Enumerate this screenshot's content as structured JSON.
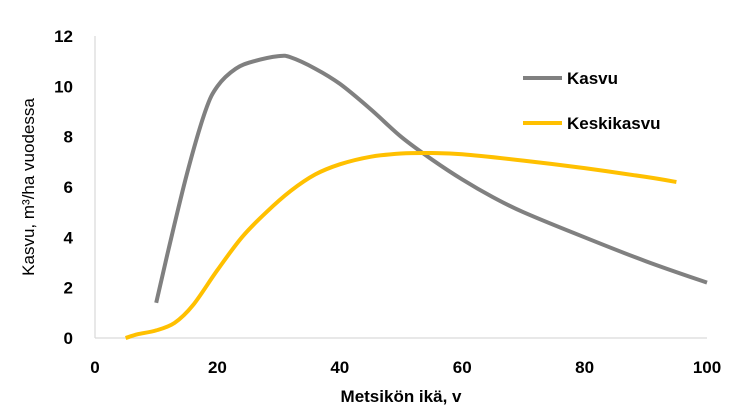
{
  "chart_data": {
    "type": "line",
    "xlabel": "Metsikön ikä, v",
    "ylabel": "Kasvu, m³/ha vuodessa",
    "xlim": [
      0,
      100
    ],
    "ylim": [
      0,
      12
    ],
    "xticks": [
      0,
      20,
      40,
      60,
      80,
      100
    ],
    "yticks": [
      0,
      2,
      4,
      6,
      8,
      10,
      12
    ],
    "grid": false,
    "legend_position": "top-right",
    "series": [
      {
        "name": "Kasvu",
        "color": "#808080",
        "points": [
          [
            10,
            1.4
          ],
          [
            12,
            3.5
          ],
          [
            15,
            6.5
          ],
          [
            18,
            9.0
          ],
          [
            20,
            10.0
          ],
          [
            23,
            10.7
          ],
          [
            26,
            11.0
          ],
          [
            30,
            11.2
          ],
          [
            32,
            11.15
          ],
          [
            36,
            10.7
          ],
          [
            40,
            10.1
          ],
          [
            45,
            9.1
          ],
          [
            50,
            8.0
          ],
          [
            55,
            7.1
          ],
          [
            60,
            6.3
          ],
          [
            65,
            5.6
          ],
          [
            70,
            5.0
          ],
          [
            80,
            4.0
          ],
          [
            90,
            3.05
          ],
          [
            100,
            2.2
          ]
        ]
      },
      {
        "name": "Keskikasvu",
        "color": "#FFC000",
        "points": [
          [
            5,
            0.0
          ],
          [
            7,
            0.15
          ],
          [
            10,
            0.3
          ],
          [
            13,
            0.6
          ],
          [
            16,
            1.3
          ],
          [
            20,
            2.7
          ],
          [
            24,
            4.0
          ],
          [
            28,
            5.0
          ],
          [
            32,
            5.85
          ],
          [
            36,
            6.5
          ],
          [
            40,
            6.9
          ],
          [
            45,
            7.2
          ],
          [
            50,
            7.33
          ],
          [
            55,
            7.35
          ],
          [
            60,
            7.3
          ],
          [
            70,
            7.05
          ],
          [
            80,
            6.75
          ],
          [
            90,
            6.4
          ],
          [
            95,
            6.2
          ]
        ]
      }
    ]
  }
}
